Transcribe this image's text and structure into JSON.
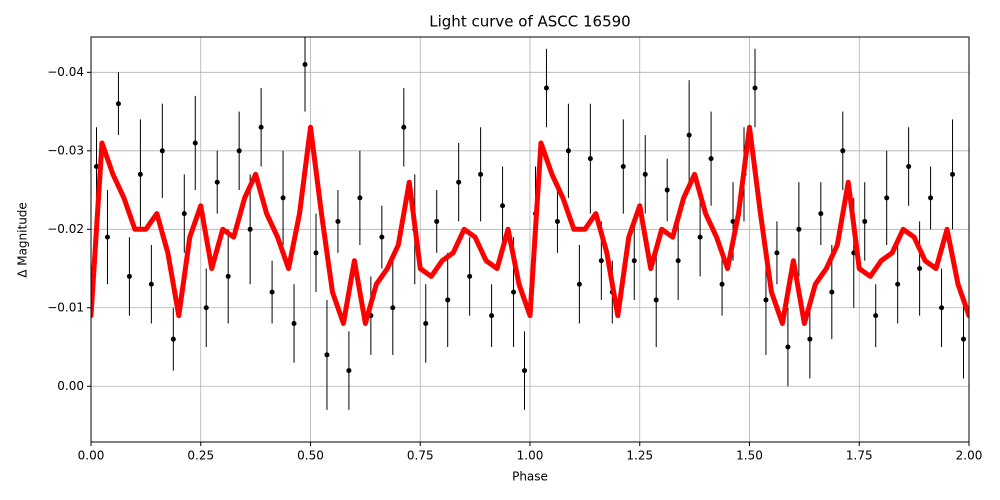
{
  "chart_data": {
    "type": "scatter",
    "title": "Light curve of ASCC 16590",
    "xlabel": "Phase",
    "ylabel": "Δ Magnitude",
    "xlim": [
      0,
      2
    ],
    "ylim": [
      -0.0445,
      0.0071
    ],
    "y_inverted": true,
    "grid": true,
    "xticks": [
      {
        "value": 0,
        "label": "0.00"
      },
      0.25,
      {
        "value": 0.5,
        "label": "0.50"
      },
      0.75,
      {
        "value": 1,
        "label": "1.00"
      },
      1.25,
      {
        "value": 1.5,
        "label": "1.50"
      },
      1.75,
      {
        "value": 2,
        "label": "2.00"
      }
    ],
    "yticks": [
      {
        "value": -0.04,
        "label": "−0.04"
      },
      {
        "value": -0.03,
        "label": "−0.03"
      },
      {
        "value": -0.02,
        "label": "−0.02"
      },
      {
        "value": -0.01,
        "label": "−0.01"
      },
      {
        "value": 0,
        "label": "0.00"
      }
    ],
    "series": [
      {
        "type": "errorbar",
        "color": "#000000",
        "x": [
          0.0125,
          0.0375,
          0.0625,
          0.0875,
          0.1125,
          0.1375,
          0.1625,
          0.1875,
          0.2125,
          0.2375,
          0.2625,
          0.2875,
          0.3125,
          0.3375,
          0.3625,
          0.3875,
          0.4125,
          0.4375,
          0.4625,
          0.4875,
          0.5125,
          0.5375,
          0.5625,
          0.5875,
          0.6125,
          0.6375,
          0.6625,
          0.6875,
          0.7125,
          0.7375,
          0.7625,
          0.7875,
          0.8125,
          0.8375,
          0.8625,
          0.8875,
          0.9125,
          0.9375,
          0.9625,
          0.9875,
          1.0125,
          1.0375,
          1.0625,
          1.0875,
          1.1125,
          1.1375,
          1.1625,
          1.1875,
          1.2125,
          1.2375,
          1.2625,
          1.2875,
          1.3125,
          1.3375,
          1.3625,
          1.3875,
          1.4125,
          1.4375,
          1.4625,
          1.4875,
          1.5125,
          1.5375,
          1.5625,
          1.5875,
          1.6125,
          1.6375,
          1.6625,
          1.6875,
          1.7125,
          1.7375,
          1.7625,
          1.7875,
          1.8125,
          1.8375,
          1.8625,
          1.8875,
          1.9125,
          1.9375,
          1.9625,
          1.9875
        ],
        "values": [
          -0.028,
          -0.019,
          -0.036,
          -0.014,
          -0.027,
          -0.013,
          -0.03,
          -0.006,
          -0.022,
          -0.031,
          -0.01,
          -0.026,
          -0.014,
          -0.03,
          -0.02,
          -0.033,
          -0.012,
          -0.024,
          -0.008,
          -0.041,
          -0.017,
          -0.004,
          -0.021,
          -0.002,
          -0.024,
          -0.009,
          -0.019,
          -0.01,
          -0.033,
          -0.02,
          -0.008,
          -0.021,
          -0.011,
          -0.026,
          -0.014,
          -0.027,
          -0.009,
          -0.023,
          -0.012,
          -0.002,
          -0.022,
          -0.038,
          -0.021,
          -0.03,
          -0.013,
          -0.029,
          -0.016,
          -0.012,
          -0.028,
          -0.016,
          -0.027,
          -0.011,
          -0.025,
          -0.016,
          -0.032,
          -0.019,
          -0.029,
          -0.013,
          -0.021,
          -0.027,
          -0.038,
          -0.011,
          -0.017,
          -0.005,
          -0.02,
          -0.006,
          -0.022,
          -0.012,
          -0.03,
          -0.017,
          -0.021,
          -0.009,
          -0.024,
          -0.013,
          -0.028,
          -0.015,
          -0.024,
          -0.01,
          -0.027,
          -0.006
        ],
        "errors": [
          0.005,
          0.006,
          0.004,
          0.005,
          0.007,
          0.005,
          0.006,
          0.004,
          0.005,
          0.006,
          0.005,
          0.004,
          0.006,
          0.005,
          0.007,
          0.005,
          0.004,
          0.006,
          0.005,
          0.006,
          0.005,
          0.007,
          0.004,
          0.005,
          0.006,
          0.005,
          0.004,
          0.006,
          0.005,
          0.007,
          0.005,
          0.004,
          0.006,
          0.005,
          0.005,
          0.006,
          0.004,
          0.005,
          0.007,
          0.005,
          0.006,
          0.005,
          0.004,
          0.006,
          0.005,
          0.007,
          0.005,
          0.004,
          0.006,
          0.005,
          0.005,
          0.006,
          0.004,
          0.005,
          0.007,
          0.005,
          0.006,
          0.004,
          0.005,
          0.006,
          0.005,
          0.007,
          0.004,
          0.005,
          0.006,
          0.005,
          0.004,
          0.006,
          0.005,
          0.007,
          0.005,
          0.004,
          0.006,
          0.005,
          0.005,
          0.006,
          0.004,
          0.005,
          0.007,
          0.005
        ]
      },
      {
        "type": "line",
        "color": "#ff0000",
        "x": [
          0,
          0.025,
          0.05,
          0.075,
          0.1,
          0.125,
          0.15,
          0.175,
          0.2,
          0.225,
          0.25,
          0.275,
          0.3,
          0.325,
          0.35,
          0.375,
          0.4,
          0.425,
          0.45,
          0.475,
          0.5,
          0.525,
          0.55,
          0.575,
          0.6,
          0.625,
          0.65,
          0.675,
          0.7,
          0.725,
          0.75,
          0.775,
          0.8,
          0.825,
          0.85,
          0.875,
          0.9,
          0.925,
          0.95,
          0.975,
          1,
          1.025,
          1.05,
          1.075,
          1.1,
          1.125,
          1.15,
          1.175,
          1.2,
          1.225,
          1.25,
          1.275,
          1.3,
          1.325,
          1.35,
          1.375,
          1.4,
          1.425,
          1.45,
          1.475,
          1.5,
          1.525,
          1.55,
          1.575,
          1.6,
          1.625,
          1.65,
          1.675,
          1.7,
          1.725,
          1.75,
          1.775,
          1.8,
          1.825,
          1.85,
          1.875,
          1.9,
          1.925,
          1.95,
          1.975,
          2
        ],
        "values": [
          -0.009,
          -0.031,
          -0.027,
          -0.024,
          -0.02,
          -0.02,
          -0.022,
          -0.017,
          -0.009,
          -0.019,
          -0.023,
          -0.015,
          -0.02,
          -0.019,
          -0.024,
          -0.027,
          -0.022,
          -0.019,
          -0.015,
          -0.022,
          -0.033,
          -0.022,
          -0.012,
          -0.008,
          -0.016,
          -0.008,
          -0.013,
          -0.015,
          -0.018,
          -0.026,
          -0.015,
          -0.014,
          -0.016,
          -0.017,
          -0.02,
          -0.019,
          -0.016,
          -0.015,
          -0.02,
          -0.013,
          -0.009,
          -0.031,
          -0.027,
          -0.024,
          -0.02,
          -0.02,
          -0.022,
          -0.017,
          -0.009,
          -0.019,
          -0.023,
          -0.015,
          -0.02,
          -0.019,
          -0.024,
          -0.027,
          -0.022,
          -0.019,
          -0.015,
          -0.022,
          -0.033,
          -0.022,
          -0.012,
          -0.008,
          -0.016,
          -0.008,
          -0.013,
          -0.015,
          -0.018,
          -0.026,
          -0.015,
          -0.014,
          -0.016,
          -0.017,
          -0.02,
          -0.019,
          -0.016,
          -0.015,
          -0.02,
          -0.013,
          -0.009
        ]
      }
    ]
  }
}
